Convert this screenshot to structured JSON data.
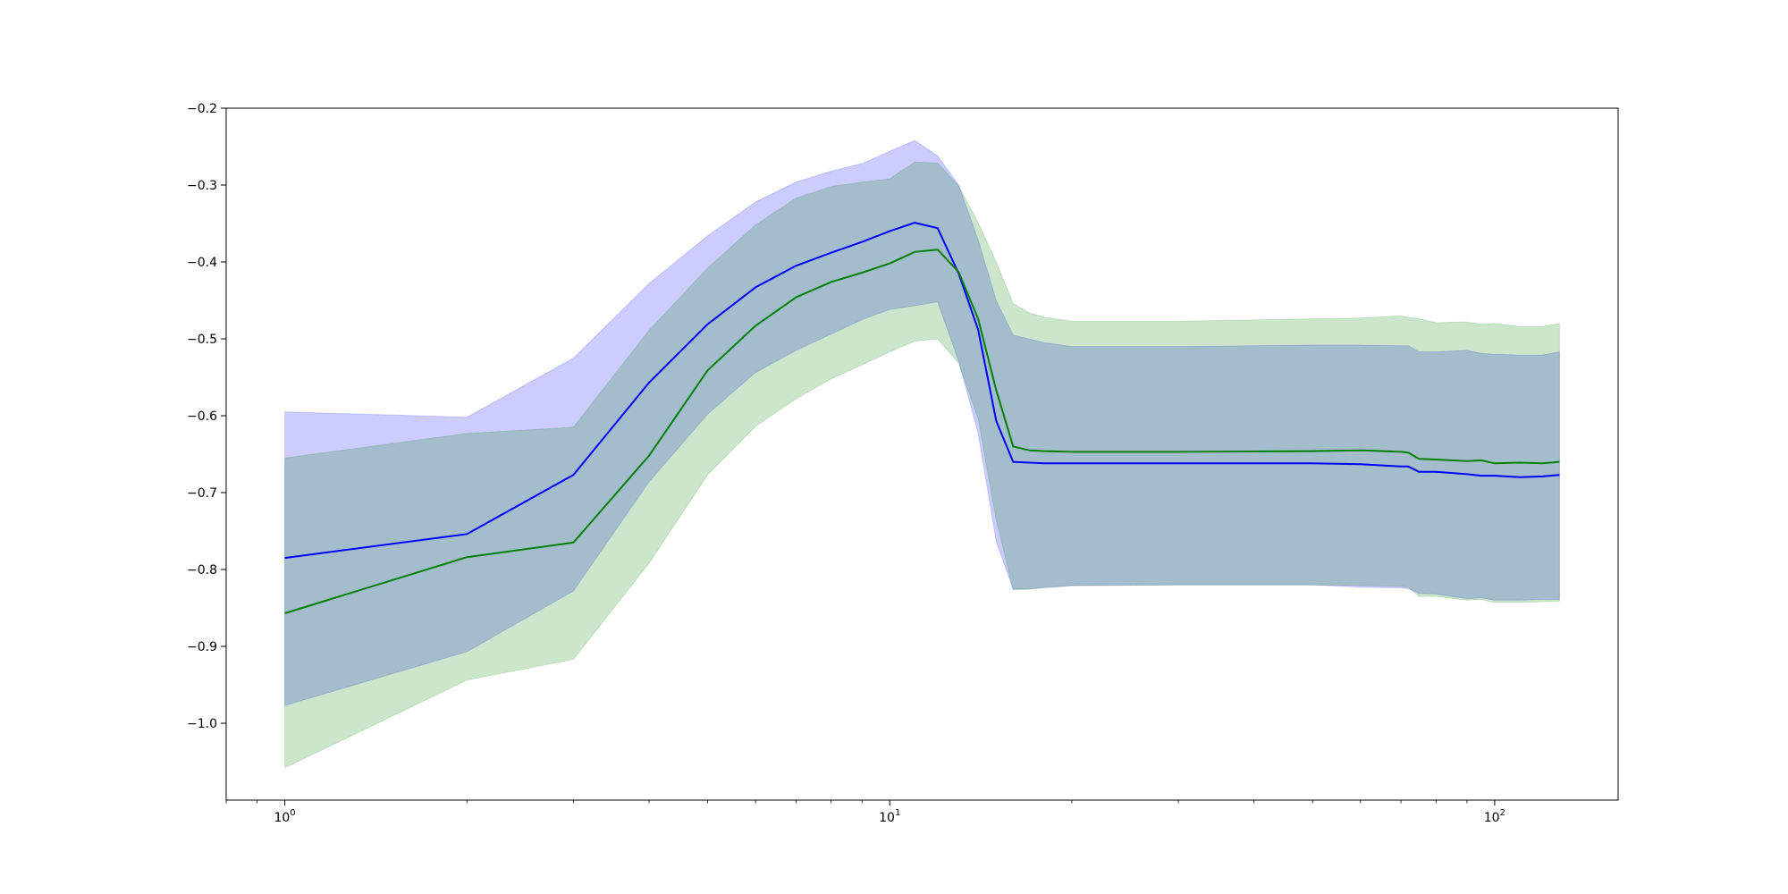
{
  "chart_data": {
    "type": "area",
    "title": "",
    "xlabel": "",
    "ylabel": "",
    "xscale": "log",
    "xlim": [
      0.8,
      160
    ],
    "ylim": [
      -1.1,
      -0.2
    ],
    "grid": false,
    "legend": "none",
    "yticks": [
      -1.0,
      -0.9,
      -0.8,
      -0.7,
      -0.6,
      -0.5,
      -0.4,
      -0.3,
      -0.2
    ],
    "ytick_labels": [
      "−1.0",
      "−0.9",
      "−0.8",
      "−0.7",
      "−0.6",
      "−0.5",
      "−0.4",
      "−0.3",
      "−0.2"
    ],
    "xticks": [
      1,
      10,
      100
    ],
    "xtick_labels": [
      {
        "base": "10",
        "exp": "0"
      },
      {
        "base": "10",
        "exp": "1"
      },
      {
        "base": "10",
        "exp": "2"
      }
    ],
    "series": [
      {
        "color": "#0000ff",
        "fill_color": "#0000ff",
        "fill_opacity": 0.2,
        "x": [
          1,
          2,
          3,
          4,
          5,
          6,
          7,
          8,
          9,
          10,
          11,
          12,
          13,
          14,
          15,
          16,
          18,
          20,
          30,
          50,
          60,
          70,
          72,
          75,
          80,
          90,
          95,
          100,
          110,
          120,
          128
        ],
        "mean": [
          -0.785,
          -0.754,
          -0.677,
          -0.557,
          -0.481,
          -0.433,
          -0.405,
          -0.388,
          -0.374,
          -0.36,
          -0.349,
          -0.356,
          -0.415,
          -0.488,
          -0.607,
          -0.66,
          -0.662,
          -0.662,
          -0.662,
          -0.662,
          -0.663,
          -0.666,
          -0.666,
          -0.673,
          -0.673,
          -0.676,
          -0.678,
          -0.678,
          -0.68,
          -0.679,
          -0.677
        ],
        "upper": [
          -0.595,
          -0.602,
          -0.525,
          -0.428,
          -0.366,
          -0.322,
          -0.296,
          -0.282,
          -0.272,
          -0.256,
          -0.242,
          -0.262,
          -0.3,
          -0.371,
          -0.45,
          -0.495,
          -0.505,
          -0.51,
          -0.51,
          -0.508,
          -0.508,
          -0.509,
          -0.509,
          -0.517,
          -0.517,
          -0.515,
          -0.519,
          -0.52,
          -0.521,
          -0.521,
          -0.517
        ],
        "lower": [
          -0.977,
          -0.907,
          -0.828,
          -0.686,
          -0.598,
          -0.544,
          -0.515,
          -0.494,
          -0.475,
          -0.462,
          -0.457,
          -0.452,
          -0.529,
          -0.623,
          -0.764,
          -0.826,
          -0.824,
          -0.821,
          -0.82,
          -0.82,
          -0.823,
          -0.824,
          -0.825,
          -0.831,
          -0.832,
          -0.838,
          -0.837,
          -0.84,
          -0.84,
          -0.839,
          -0.839
        ]
      },
      {
        "color": "#008000",
        "fill_color": "#008000",
        "fill_opacity": 0.2,
        "x": [
          1,
          2,
          3,
          4,
          5,
          6,
          7,
          8,
          9,
          10,
          11,
          12,
          13,
          14,
          15,
          16,
          17,
          18,
          20,
          30,
          50,
          60,
          70,
          72,
          75,
          80,
          90,
          95,
          100,
          110,
          120,
          128
        ],
        "mean": [
          -0.857,
          -0.784,
          -0.765,
          -0.652,
          -0.541,
          -0.483,
          -0.446,
          -0.426,
          -0.414,
          -0.402,
          -0.387,
          -0.384,
          -0.413,
          -0.474,
          -0.567,
          -0.64,
          -0.645,
          -0.646,
          -0.647,
          -0.647,
          -0.646,
          -0.645,
          -0.647,
          -0.648,
          -0.656,
          -0.657,
          -0.659,
          -0.658,
          -0.662,
          -0.661,
          -0.662,
          -0.66
        ],
        "upper": [
          -0.655,
          -0.623,
          -0.615,
          -0.489,
          -0.408,
          -0.352,
          -0.317,
          -0.302,
          -0.296,
          -0.292,
          -0.27,
          -0.271,
          -0.301,
          -0.349,
          -0.4,
          -0.454,
          -0.466,
          -0.472,
          -0.477,
          -0.477,
          -0.474,
          -0.473,
          -0.47,
          -0.472,
          -0.474,
          -0.479,
          -0.478,
          -0.481,
          -0.48,
          -0.484,
          -0.484,
          -0.48
        ],
        "lower": [
          -1.058,
          -0.944,
          -0.917,
          -0.792,
          -0.677,
          -0.614,
          -0.578,
          -0.552,
          -0.534,
          -0.517,
          -0.503,
          -0.5,
          -0.532,
          -0.604,
          -0.736,
          -0.826,
          -0.826,
          -0.823,
          -0.821,
          -0.82,
          -0.82,
          -0.821,
          -0.822,
          -0.823,
          -0.835,
          -0.835,
          -0.84,
          -0.839,
          -0.843,
          -0.843,
          -0.842,
          -0.841
        ]
      }
    ]
  }
}
